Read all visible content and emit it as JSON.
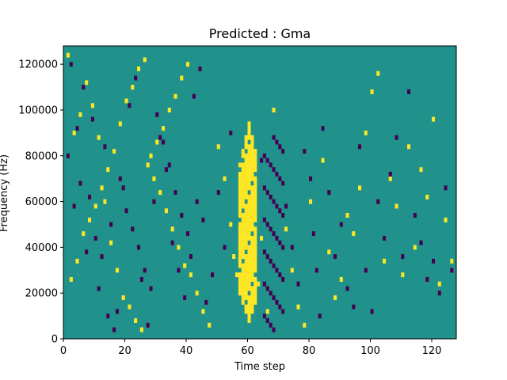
{
  "chart_data": {
    "type": "heatmap",
    "title": "Predicted : Gma",
    "xlabel": "Time step",
    "ylabel": "Frequency (Hz)",
    "xlim": [
      0,
      128
    ],
    "ylim": [
      0,
      128000
    ],
    "x_ticks": [
      0,
      20,
      40,
      60,
      80,
      100,
      120
    ],
    "y_ticks": [
      0,
      20000,
      40000,
      60000,
      80000,
      100000,
      120000
    ],
    "y_tick_labels": [
      "0",
      "20000",
      "40000",
      "60000",
      "80000",
      "100000",
      "120000"
    ],
    "grid": false,
    "legend": "none",
    "colors": {
      "background": "#21918c",
      "high": "#fde725",
      "low": "#440154"
    },
    "dense_band": {
      "columns": [
        57,
        62
      ],
      "value": "high",
      "note_freq_range": [
        8000,
        96000
      ]
    },
    "column_band_low": {
      "columns": [
        65,
        71
      ]
    },
    "cells_high": [
      [
        1,
        124
      ],
      [
        3,
        90
      ],
      [
        5,
        98
      ],
      [
        7,
        112
      ],
      [
        9,
        102
      ],
      [
        11,
        88
      ],
      [
        13,
        60
      ],
      [
        15,
        42
      ],
      [
        17,
        30
      ],
      [
        19,
        18
      ],
      [
        21,
        14
      ],
      [
        23,
        8
      ],
      [
        25,
        4
      ],
      [
        27,
        76
      ],
      [
        29,
        70
      ],
      [
        31,
        64
      ],
      [
        33,
        56
      ],
      [
        35,
        48
      ],
      [
        37,
        40
      ],
      [
        39,
        32
      ],
      [
        41,
        28
      ],
      [
        43,
        20
      ],
      [
        45,
        12
      ],
      [
        47,
        6
      ],
      [
        2,
        26
      ],
      [
        4,
        34
      ],
      [
        6,
        46
      ],
      [
        8,
        52
      ],
      [
        10,
        58
      ],
      [
        12,
        66
      ],
      [
        14,
        74
      ],
      [
        16,
        82
      ],
      [
        18,
        94
      ],
      [
        20,
        104
      ],
      [
        22,
        110
      ],
      [
        24,
        118
      ],
      [
        26,
        122
      ],
      [
        28,
        80
      ],
      [
        30,
        86
      ],
      [
        32,
        92
      ],
      [
        34,
        100
      ],
      [
        36,
        106
      ],
      [
        38,
        114
      ],
      [
        40,
        120
      ],
      [
        50,
        84
      ],
      [
        52,
        70
      ],
      [
        54,
        50
      ],
      [
        55,
        36
      ],
      [
        56,
        28
      ],
      [
        63,
        24
      ],
      [
        64,
        44
      ],
      [
        66,
        12
      ],
      [
        68,
        100
      ],
      [
        72,
        48
      ],
      [
        74,
        30
      ],
      [
        76,
        14
      ],
      [
        78,
        6
      ],
      [
        80,
        60
      ],
      [
        84,
        78
      ],
      [
        86,
        38
      ],
      [
        88,
        18
      ],
      [
        90,
        26
      ],
      [
        92,
        54
      ],
      [
        94,
        46
      ],
      [
        96,
        66
      ],
      [
        98,
        90
      ],
      [
        100,
        108
      ],
      [
        102,
        116
      ],
      [
        104,
        34
      ],
      [
        106,
        70
      ],
      [
        108,
        58
      ],
      [
        110,
        28
      ],
      [
        112,
        84
      ],
      [
        114,
        40
      ],
      [
        116,
        74
      ],
      [
        118,
        62
      ],
      [
        120,
        96
      ],
      [
        122,
        24
      ],
      [
        124,
        52
      ],
      [
        126,
        34
      ]
    ],
    "cells_low": [
      [
        2,
        120
      ],
      [
        4,
        92
      ],
      [
        6,
        110
      ],
      [
        8,
        62
      ],
      [
        10,
        44
      ],
      [
        12,
        36
      ],
      [
        14,
        10
      ],
      [
        16,
        4
      ],
      [
        18,
        70
      ],
      [
        20,
        56
      ],
      [
        22,
        48
      ],
      [
        24,
        40
      ],
      [
        26,
        30
      ],
      [
        28,
        22
      ],
      [
        30,
        98
      ],
      [
        32,
        86
      ],
      [
        34,
        76
      ],
      [
        36,
        64
      ],
      [
        38,
        54
      ],
      [
        40,
        46
      ],
      [
        42,
        106
      ],
      [
        44,
        118
      ],
      [
        46,
        16
      ],
      [
        48,
        28
      ],
      [
        1,
        80
      ],
      [
        3,
        58
      ],
      [
        5,
        68
      ],
      [
        7,
        38
      ],
      [
        9,
        96
      ],
      [
        11,
        22
      ],
      [
        13,
        84
      ],
      [
        15,
        50
      ],
      [
        17,
        12
      ],
      [
        19,
        66
      ],
      [
        21,
        102
      ],
      [
        23,
        114
      ],
      [
        25,
        26
      ],
      [
        27,
        6
      ],
      [
        29,
        60
      ],
      [
        31,
        88
      ],
      [
        33,
        74
      ],
      [
        35,
        42
      ],
      [
        37,
        30
      ],
      [
        39,
        18
      ],
      [
        41,
        36
      ],
      [
        43,
        60
      ],
      [
        45,
        52
      ],
      [
        50,
        64
      ],
      [
        52,
        40
      ],
      [
        54,
        90
      ],
      [
        64,
        78
      ],
      [
        72,
        58
      ],
      [
        74,
        40
      ],
      [
        76,
        24
      ],
      [
        78,
        82
      ],
      [
        80,
        70
      ],
      [
        81,
        46
      ],
      [
        82,
        30
      ],
      [
        83,
        10
      ],
      [
        84,
        92
      ],
      [
        86,
        64
      ],
      [
        88,
        36
      ],
      [
        90,
        50
      ],
      [
        92,
        22
      ],
      [
        94,
        14
      ],
      [
        96,
        84
      ],
      [
        98,
        30
      ],
      [
        100,
        12
      ],
      [
        102,
        60
      ],
      [
        104,
        44
      ],
      [
        106,
        72
      ],
      [
        108,
        88
      ],
      [
        110,
        36
      ],
      [
        112,
        108
      ],
      [
        114,
        54
      ],
      [
        116,
        42
      ],
      [
        118,
        26
      ],
      [
        120,
        34
      ],
      [
        122,
        20
      ],
      [
        124,
        66
      ],
      [
        126,
        30
      ]
    ]
  }
}
